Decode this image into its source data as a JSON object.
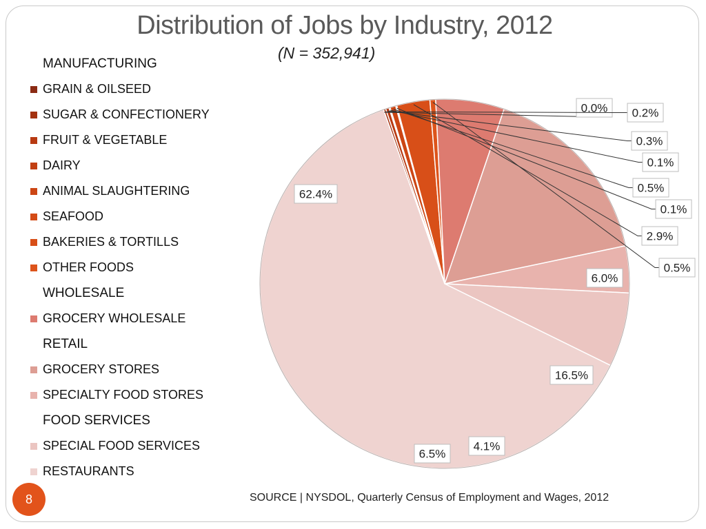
{
  "title": "Distribution of Jobs by Industry, 2012",
  "subtitle": "(N = 352,941)",
  "legend": [
    {
      "kind": "header",
      "label": "MANUFACTURING"
    },
    {
      "kind": "item",
      "label": "GRAIN & OILSEED",
      "color": "#8b2b14"
    },
    {
      "kind": "item",
      "label": "SUGAR & CONFECTIONERY",
      "color": "#a3310f"
    },
    {
      "kind": "item",
      "label": "FRUIT & VEGETABLE",
      "color": "#b83a12"
    },
    {
      "kind": "item",
      "label": "DAIRY",
      "color": "#c24012"
    },
    {
      "kind": "item",
      "label": "ANIMAL SLAUGHTERING",
      "color": "#cc4614"
    },
    {
      "kind": "item",
      "label": "SEAFOOD",
      "color": "#d44b16"
    },
    {
      "kind": "item",
      "label": "BAKERIES & TORTILLS",
      "color": "#d84f18"
    },
    {
      "kind": "item",
      "label": "OTHER FOODS",
      "color": "#dd541b"
    },
    {
      "kind": "header",
      "label": "WHOLESALE"
    },
    {
      "kind": "item",
      "label": "GROCERY WHOLESALE",
      "color": "#dd7b70"
    },
    {
      "kind": "header",
      "label": "RETAIL"
    },
    {
      "kind": "item",
      "label": "GROCERY STORES",
      "color": "#dd9e94"
    },
    {
      "kind": "item",
      "label": "SPECIALTY FOOD STORES",
      "color": "#e8b3ad"
    },
    {
      "kind": "header",
      "label": "FOOD SERVICES"
    },
    {
      "kind": "item",
      "label": "SPECIAL FOOD SERVICES",
      "color": "#ebc5c1"
    },
    {
      "kind": "item",
      "label": "RESTAURANTS",
      "color": "#efd3d0"
    }
  ],
  "chart_data": {
    "type": "pie",
    "title": "Distribution of Jobs by Industry, 2012",
    "subtitle": "(N = 352,941)",
    "slices": [
      {
        "label": "GRAIN & OILSEED",
        "value": 0.0,
        "display": "0.0%",
        "color": "#8b2b14"
      },
      {
        "label": "SUGAR & CONFECTIONERY",
        "value": 0.2,
        "display": "0.2%",
        "color": "#a3310f"
      },
      {
        "label": "FRUIT & VEGETABLE",
        "value": 0.3,
        "display": "0.3%",
        "color": "#b83a12"
      },
      {
        "label": "DAIRY",
        "value": 0.1,
        "display": "0.1%",
        "color": "#c24012"
      },
      {
        "label": "ANIMAL SLAUGHTERING",
        "value": 0.5,
        "display": "0.5%",
        "color": "#cc4614"
      },
      {
        "label": "SEAFOOD",
        "value": 0.1,
        "display": "0.1%",
        "color": "#d44b16"
      },
      {
        "label": "BAKERIES & TORTILLS",
        "value": 2.9,
        "display": "2.9%",
        "color": "#d84f18"
      },
      {
        "label": "OTHER FOODS",
        "value": 0.5,
        "display": "0.5%",
        "color": "#dd541b"
      },
      {
        "label": "GROCERY WHOLESALE",
        "value": 6.0,
        "display": "6.0%",
        "color": "#dd7b70"
      },
      {
        "label": "GROCERY STORES",
        "value": 16.5,
        "display": "16.5%",
        "color": "#dd9e94"
      },
      {
        "label": "SPECIALTY FOOD STORES",
        "value": 4.1,
        "display": "4.1%",
        "color": "#e8b3ad"
      },
      {
        "label": "SPECIAL FOOD SERVICES",
        "value": 6.5,
        "display": "6.5%",
        "color": "#ebc5c1"
      },
      {
        "label": "RESTAURANTS",
        "value": 62.4,
        "display": "62.4%",
        "color": "#efd3d0"
      }
    ]
  },
  "footer": {
    "page_number": "8",
    "source_label": "SOURCE",
    "source_separator": "|",
    "source_text": "NYSDOL, Quarterly Census of Employment and Wages, 2012"
  }
}
